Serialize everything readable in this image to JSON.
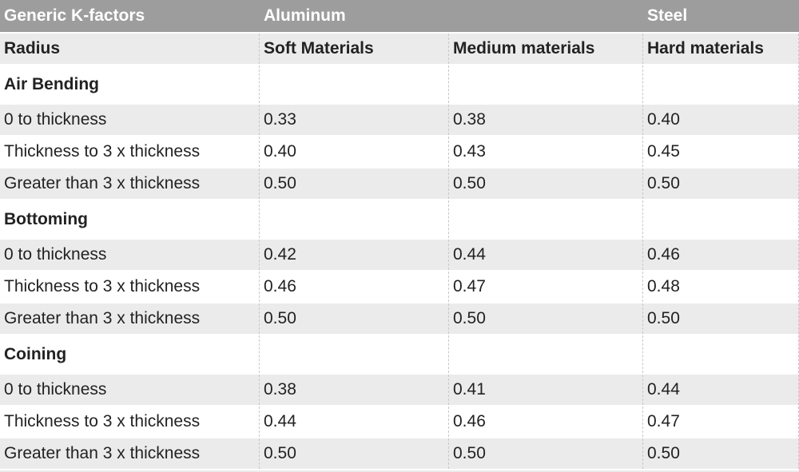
{
  "header": {
    "title": "Generic K-factors",
    "aluminum": "Aluminum",
    "steel": "Steel"
  },
  "subheader": [
    "Radius",
    "Soft Materials",
    "Medium materials",
    "Hard materials"
  ],
  "sections": [
    {
      "name": "Air Bending",
      "rows": [
        [
          "0 to thickness",
          "0.33",
          "0.38",
          "0.40"
        ],
        [
          "Thickness to 3 x thickness",
          "0.40",
          "0.43",
          "0.45"
        ],
        [
          "Greater than 3 x thickness",
          "0.50",
          "0.50",
          "0.50"
        ]
      ]
    },
    {
      "name": "Bottoming",
      "rows": [
        [
          "0 to thickness",
          "0.42",
          "0.44",
          "0.46"
        ],
        [
          "Thickness to 3 x thickness",
          "0.46",
          "0.47",
          "0.48"
        ],
        [
          "Greater than 3 x thickness",
          "0.50",
          "0.50",
          "0.50"
        ]
      ]
    },
    {
      "name": "Coining",
      "rows": [
        [
          "0 to thickness",
          "0.38",
          "0.41",
          "0.44"
        ],
        [
          "Thickness to 3 x thickness",
          "0.44",
          "0.46",
          "0.47"
        ],
        [
          "Greater than 3 x thickness",
          "0.50",
          "0.50",
          "0.50"
        ]
      ]
    }
  ]
}
